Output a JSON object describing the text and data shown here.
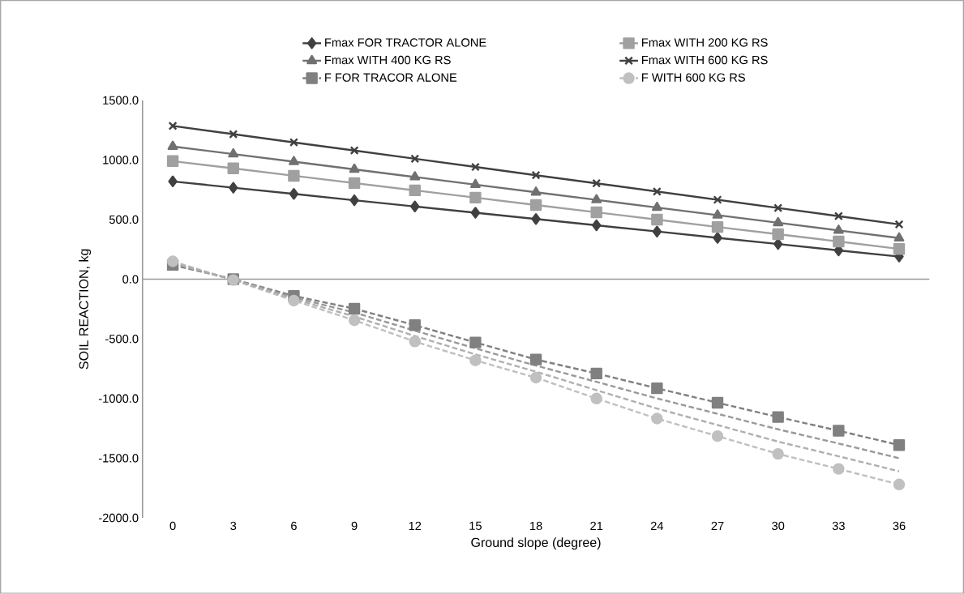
{
  "chart_data": {
    "type": "line",
    "xlabel": "Ground slope (degree)",
    "ylabel": "SOIL REACTION, kg",
    "categories": [
      "0",
      "3",
      "6",
      "9",
      "12",
      "15",
      "18",
      "21",
      "24",
      "27",
      "30",
      "33",
      "36"
    ],
    "ylim": [
      -2000,
      1500
    ],
    "yticks": [
      {
        "value": -2000,
        "label": "-2000.0"
      },
      {
        "value": -1500,
        "label": "-1500.0"
      },
      {
        "value": -1000,
        "label": "-1000.0"
      },
      {
        "value": -500,
        "label": "-500.0"
      },
      {
        "value": 0,
        "label": "0.0"
      },
      {
        "value": 500,
        "label": "500.0"
      },
      {
        "value": 1000,
        "label": "1000.0"
      },
      {
        "value": 1500,
        "label": "1500.0"
      }
    ],
    "legend": "top",
    "series": [
      {
        "name": "Fmax FOR TRACTOR ALONE",
        "color": "#404040",
        "marker": "diamond",
        "line_style": "solid",
        "values": [
          820,
          767,
          715,
          662,
          610,
          557,
          505,
          452,
          400,
          347,
          295,
          242,
          190
        ]
      },
      {
        "name": "Fmax WITH 200 KG RS",
        "color": "#a0a0a0",
        "marker": "square",
        "line_style": "solid",
        "values": [
          990,
          929,
          867,
          806,
          745,
          684,
          622,
          561,
          500,
          438,
          377,
          316,
          254
        ]
      },
      {
        "name": "Fmax WITH 400 KG RS",
        "color": "#707070",
        "marker": "triangle",
        "line_style": "solid",
        "values": [
          1113,
          1049,
          985,
          921,
          857,
          793,
          729,
          665,
          601,
          537,
          473,
          409,
          345
        ]
      },
      {
        "name": "Fmax WITH 600 KG RS",
        "color": "#404040",
        "marker": "cross",
        "line_style": "solid",
        "values": [
          1285,
          1216,
          1147,
          1079,
          1010,
          941,
          872,
          804,
          735,
          666,
          597,
          529,
          460
        ]
      },
      {
        "name": "F FOR TRACOR ALONE",
        "color": "#808080",
        "marker": "square",
        "line_style": "dashed",
        "values": [
          120,
          0,
          -140,
          -247,
          -385,
          -530,
          -673,
          -790,
          -914,
          -1035,
          -1155,
          -1270,
          -1390
        ]
      },
      {
        "name": "F WITH 600 KG RS",
        "color": "#c0c0c0",
        "marker": "circle",
        "line_style": "dashed",
        "values": [
          150,
          -7,
          -179,
          -344,
          -522,
          -680,
          -825,
          -1000,
          -1168,
          -1315,
          -1464,
          -1590,
          -1720
        ]
      },
      {
        "color": "#999999",
        "marker": "none",
        "line_style": "dashed",
        "values": [
          130,
          -2,
          -153,
          -279,
          -431,
          -580,
          -724,
          -860,
          -999,
          -1128,
          -1258,
          -1377,
          -1500
        ]
      },
      {
        "color": "#b0b0b0",
        "marker": "none",
        "line_style": "dashed",
        "values": [
          140,
          -5,
          -166,
          -312,
          -476,
          -630,
          -775,
          -930,
          -1084,
          -1222,
          -1361,
          -1484,
          -1610
        ]
      }
    ]
  }
}
